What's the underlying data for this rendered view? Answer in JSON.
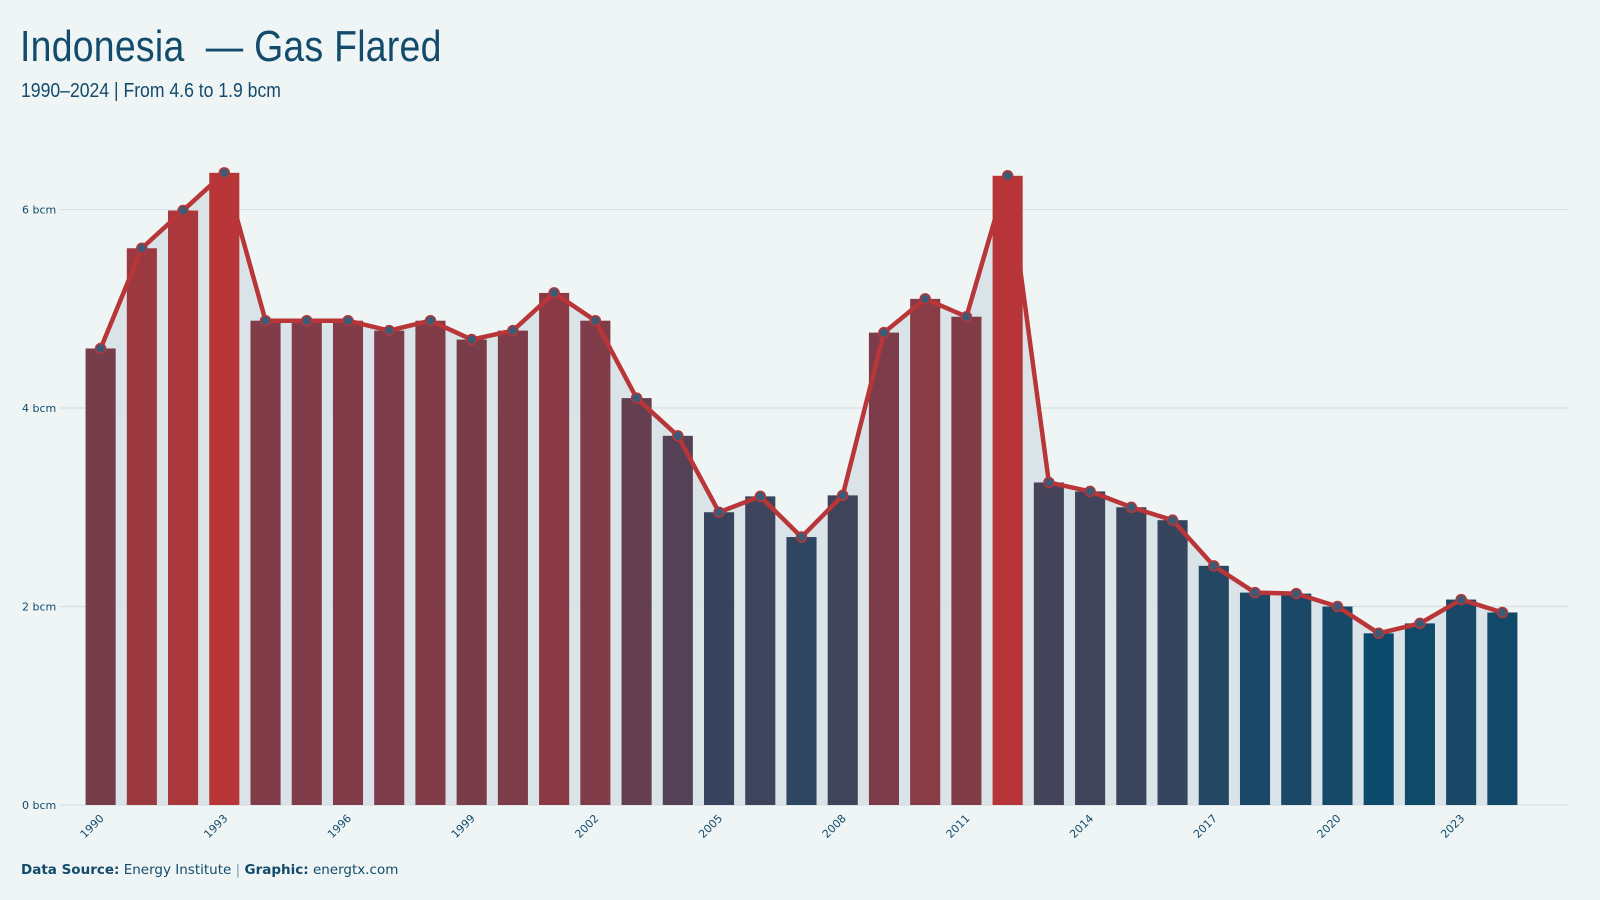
{
  "header": {
    "title": "Indonesia  — Gas Flared",
    "subtitle": "1990–2024 | From 4.6 to 1.9 bcm"
  },
  "footer": {
    "source_label": "Data Source:",
    "source_value": "Energy Institute",
    "separator": "|",
    "graphic_label": "Graphic:",
    "graphic_value": "energtx.com"
  },
  "colors": {
    "high": "#b83538",
    "low": "#0b4a6a",
    "line": "#b83538",
    "marker_fill": "#3f5a74",
    "grid": "#d5e0e3",
    "area": "#d6e1e5",
    "tick_text": "#124b6c"
  },
  "chart_data": {
    "type": "bar",
    "title": "Indonesia  — Gas Flared",
    "subtitle": "1990–2024 | From 4.6 to 1.9 bcm",
    "xlabel": "",
    "ylabel": "",
    "ylim": [
      0,
      6.6
    ],
    "yticks": [
      0,
      2,
      4,
      6
    ],
    "ytick_labels": [
      "0 bcm",
      "2 bcm",
      "4 bcm",
      "6 bcm"
    ],
    "grid": true,
    "legend": "none",
    "overlay": "line with markers over bars, shaded area under line",
    "categories": [
      "1990",
      "1991",
      "1992",
      "1993",
      "1994",
      "1995",
      "1996",
      "1997",
      "1998",
      "1999",
      "2000",
      "2001",
      "2002",
      "2003",
      "2004",
      "2005",
      "2006",
      "2007",
      "2008",
      "2009",
      "2010",
      "2011",
      "2012",
      "2013",
      "2014",
      "2015",
      "2016",
      "2017",
      "2018",
      "2019",
      "2020",
      "2021",
      "2022",
      "2023",
      "2024"
    ],
    "xtick_labels": [
      "1990",
      "1993",
      "1996",
      "1999",
      "2002",
      "2005",
      "2008",
      "2011",
      "2014",
      "2017",
      "2020",
      "2023"
    ],
    "values": [
      4.6,
      5.61,
      5.99,
      6.37,
      4.88,
      4.88,
      4.88,
      4.78,
      4.88,
      4.69,
      4.78,
      5.16,
      4.88,
      4.1,
      3.72,
      2.95,
      3.11,
      2.7,
      3.12,
      4.76,
      5.1,
      4.92,
      6.34,
      3.25,
      3.16,
      3.0,
      2.87,
      2.41,
      2.14,
      2.13,
      2.0,
      1.73,
      1.83,
      2.07,
      1.94
    ],
    "unit": "bcm"
  }
}
